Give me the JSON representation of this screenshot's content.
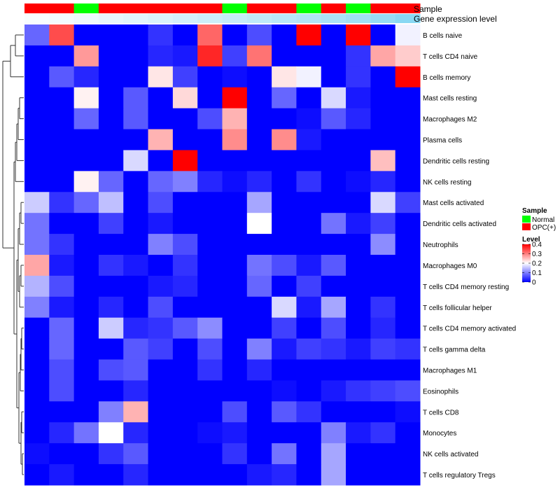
{
  "chart_data": {
    "type": "heatmap",
    "annotation_tracks": [
      {
        "name": "Sample",
        "values": [
          "OPC(+)",
          "OPC(+)",
          "Normal",
          "OPC(+)",
          "OPC(+)",
          "OPC(+)",
          "OPC(+)",
          "OPC(+)",
          "Normal",
          "OPC(+)",
          "OPC(+)",
          "Normal",
          "OPC(+)",
          "Normal",
          "OPC(+)",
          "OPC(+)"
        ],
        "colors": {
          "Normal": "#00ff00",
          "OPC(+)": "#ff0000"
        }
      },
      {
        "name": "Gene expression level",
        "values": [
          0.04,
          0.07,
          0.1,
          0.14,
          0.18,
          0.22,
          0.26,
          0.3,
          0.34,
          0.38,
          0.42,
          0.46,
          0.5,
          0.56,
          0.62,
          0.7
        ],
        "color_low": "#ffffff",
        "color_high": "#56c7ee"
      }
    ],
    "rows": [
      "B cells naive",
      "T cells CD4 naive",
      "B cells memory",
      "Mast cells resting",
      "Macrophages M2",
      "Plasma cells",
      "Dendritic cells resting",
      "NK cells resting",
      "Mast cells activated",
      "Dendritic cells activated",
      "Neutrophils",
      "Macrophages M0",
      "T cells CD4 memory resting",
      "T cells follicular helper",
      "T cells CD4 memory activated",
      "T cells gamma delta",
      "Macrophages M1",
      "Eosinophils",
      "T cells CD8",
      "Monocytes",
      "NK cells activated",
      "T cells regulatory  Tregs"
    ],
    "columns": 16,
    "values": [
      [
        0.08,
        0.34,
        0,
        0,
        0,
        0.04,
        0,
        0.32,
        0,
        0.06,
        0,
        0.4,
        0,
        0.4,
        0,
        0.19
      ],
      [
        0,
        0,
        0.28,
        0,
        0,
        0.03,
        0.02,
        0.37,
        0.05,
        0.31,
        0,
        0,
        0,
        0.04,
        0.27,
        0.24
      ],
      [
        0,
        0.07,
        0.03,
        0,
        0,
        0.22,
        0.05,
        0,
        0.01,
        0,
        0.22,
        0.19,
        0,
        0.04,
        0,
        0.4
      ],
      [
        0,
        0,
        0.21,
        0,
        0.07,
        0,
        0.23,
        0,
        0.4,
        0,
        0.08,
        0,
        0.17,
        0.02,
        0,
        0
      ],
      [
        0,
        0,
        0.08,
        0,
        0.07,
        0,
        0,
        0.06,
        0.26,
        0,
        0,
        0.01,
        0.07,
        0.03,
        0,
        0
      ],
      [
        0,
        0,
        0,
        0,
        0,
        0.26,
        0,
        0,
        0.29,
        0,
        0.29,
        0.02,
        0,
        0,
        0,
        0
      ],
      [
        0,
        0,
        0,
        0,
        0.17,
        0,
        0.4,
        0,
        0,
        0,
        0,
        0,
        0,
        0,
        0.25,
        0
      ],
      [
        0,
        0,
        0.21,
        0.08,
        0,
        0.08,
        0.1,
        0.03,
        0.01,
        0.03,
        0,
        0.04,
        0,
        0.01,
        0.03,
        0
      ],
      [
        0.16,
        0.04,
        0.08,
        0.15,
        0,
        0.06,
        0,
        0,
        0,
        0.13,
        0,
        0,
        0,
        0,
        0.17,
        0.05
      ],
      [
        0.09,
        0,
        0,
        0.05,
        0,
        0.02,
        0,
        0,
        0,
        0.2,
        0,
        0,
        0.09,
        0.02,
        0.05,
        0
      ],
      [
        0.09,
        0.04,
        0,
        0,
        0,
        0.1,
        0.06,
        0,
        0,
        0,
        0,
        0,
        0,
        0,
        0.11,
        0
      ],
      [
        0.27,
        0.02,
        0,
        0.04,
        0.02,
        0,
        0.04,
        0,
        0,
        0.09,
        0.06,
        0.02,
        0.07,
        0,
        0,
        0
      ],
      [
        0.14,
        0.06,
        0,
        0,
        0,
        0.02,
        0.03,
        0,
        0,
        0.08,
        0,
        0.05,
        0,
        0,
        0,
        0
      ],
      [
        0.1,
        0.02,
        0,
        0.03,
        0,
        0.06,
        0,
        0,
        0,
        0,
        0.17,
        0.02,
        0.13,
        0,
        0.04,
        0
      ],
      [
        0,
        0.08,
        0,
        0.16,
        0.03,
        0.04,
        0.07,
        0.11,
        0,
        0,
        0.05,
        0,
        0.06,
        0,
        0.03,
        0
      ],
      [
        0,
        0.08,
        0,
        0,
        0.07,
        0.05,
        0,
        0.06,
        0,
        0.1,
        0.02,
        0.05,
        0.04,
        0.02,
        0.05,
        0.04
      ],
      [
        0,
        0.06,
        0,
        0.06,
        0.07,
        0,
        0,
        0.04,
        0,
        0.03,
        0,
        0,
        0,
        0,
        0,
        0
      ],
      [
        0,
        0.06,
        0,
        0,
        0.03,
        0,
        0,
        0,
        0,
        0,
        0.01,
        0,
        0.02,
        0.04,
        0.05,
        0.06
      ],
      [
        0,
        0,
        0,
        0.1,
        0.26,
        0,
        0,
        0,
        0.06,
        0,
        0.07,
        0.04,
        0,
        0,
        0,
        0.01
      ],
      [
        0,
        0.03,
        0.09,
        0.2,
        0.03,
        0,
        0,
        0.01,
        0.02,
        0,
        0,
        0,
        0.1,
        0.02,
        0.04,
        0
      ],
      [
        0.01,
        0,
        0,
        0.04,
        0.07,
        0,
        0,
        0,
        0.04,
        0,
        0.09,
        0,
        0.13,
        0,
        0,
        0
      ],
      [
        0,
        0.02,
        0,
        0,
        0.03,
        0,
        0,
        0,
        0,
        0.02,
        0.03,
        0,
        0.13,
        0,
        0,
        0
      ]
    ],
    "row_dendrogram": true,
    "legend": {
      "sample_title": "Sample",
      "sample_entries": [
        {
          "label": "Normal",
          "color": "#00ff00"
        },
        {
          "label": "OPC(+)",
          "color": "#ff0000"
        }
      ],
      "level_title": "Level",
      "level_ticks": [
        "0.4",
        "0.3",
        "0.2",
        "0.1",
        "0"
      ],
      "level_range": [
        0,
        0.4
      ]
    },
    "colors": {
      "low": "#0000ff",
      "mid": "#ffffff",
      "high": "#ff0000"
    },
    "level_mid_value": 0.2
  }
}
